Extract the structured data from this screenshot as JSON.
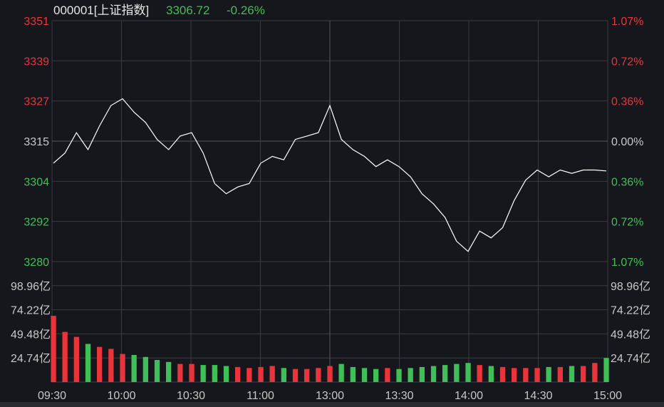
{
  "header": {
    "code": "000001[上证指数]",
    "price": "3306.72",
    "change": "-0.26%"
  },
  "colors": {
    "background": "#16171c",
    "grid": "#3a3b40",
    "up": "#e9343b",
    "down": "#3fbf57",
    "neutral": "#c8c8c8",
    "price_line": "#ffffff"
  },
  "chart_data": {
    "type": "line",
    "price_axis": {
      "left_ticks": [
        "3351",
        "3339",
        "3327",
        "3315",
        "3304",
        "3292",
        "3280"
      ],
      "right_ticks": [
        "1.07%",
        "0.72%",
        "0.36%",
        "0.00%",
        "0.36%",
        "0.72%",
        "1.07%"
      ],
      "ylim": [
        3280,
        3351
      ],
      "prev_close": 3315
    },
    "volume_axis": {
      "ticks": [
        "98.96亿",
        "74.22亿",
        "49.48亿",
        "24.74亿"
      ],
      "ylim": [
        0,
        120
      ]
    },
    "time_ticks": [
      "09:30",
      "10:00",
      "10:30",
      "11:00",
      "13:00",
      "13:30",
      "14:00",
      "14:30",
      "15:00"
    ],
    "x": [
      "09:30",
      "09:35",
      "09:40",
      "09:45",
      "09:50",
      "09:55",
      "10:00",
      "10:05",
      "10:10",
      "10:15",
      "10:20",
      "10:25",
      "10:30",
      "10:35",
      "10:40",
      "10:45",
      "10:50",
      "10:55",
      "11:00",
      "11:05",
      "11:10",
      "11:15",
      "11:20",
      "11:25",
      "11:30",
      "13:05",
      "13:10",
      "13:15",
      "13:20",
      "13:25",
      "13:30",
      "13:35",
      "13:40",
      "13:45",
      "13:50",
      "13:55",
      "14:00",
      "14:05",
      "14:10",
      "14:15",
      "14:20",
      "14:25",
      "14:30",
      "14:35",
      "14:40",
      "14:45",
      "14:50",
      "14:55",
      "15:00"
    ],
    "price": [
      3309,
      3312,
      3318,
      3313,
      3320,
      3326,
      3328,
      3324,
      3321,
      3316,
      3313,
      3317,
      3318,
      3312,
      3303,
      3300,
      3302,
      3303,
      3309,
      3311,
      3310,
      3316,
      3317,
      3318,
      3326,
      3316,
      3313,
      3311,
      3308,
      3310,
      3308,
      3305,
      3300,
      3297,
      3293,
      3286,
      3283,
      3289,
      3287,
      3290,
      3298,
      3304,
      3307,
      3305,
      3307,
      3306,
      3307,
      3307,
      3306.72
    ],
    "volume_series": [
      {
        "name": "",
        "values": [
          66,
          50,
          45,
          38,
          35,
          33,
          28,
          27,
          25,
          22,
          20,
          18,
          18,
          17,
          17,
          16,
          15,
          14,
          15,
          16,
          14,
          13,
          13,
          14,
          16,
          18,
          15,
          14,
          13,
          14,
          13,
          14,
          15,
          16,
          17,
          18,
          19,
          17,
          16,
          15,
          14,
          14,
          14,
          15,
          15,
          16,
          16,
          19,
          24
        ]
      }
    ]
  }
}
